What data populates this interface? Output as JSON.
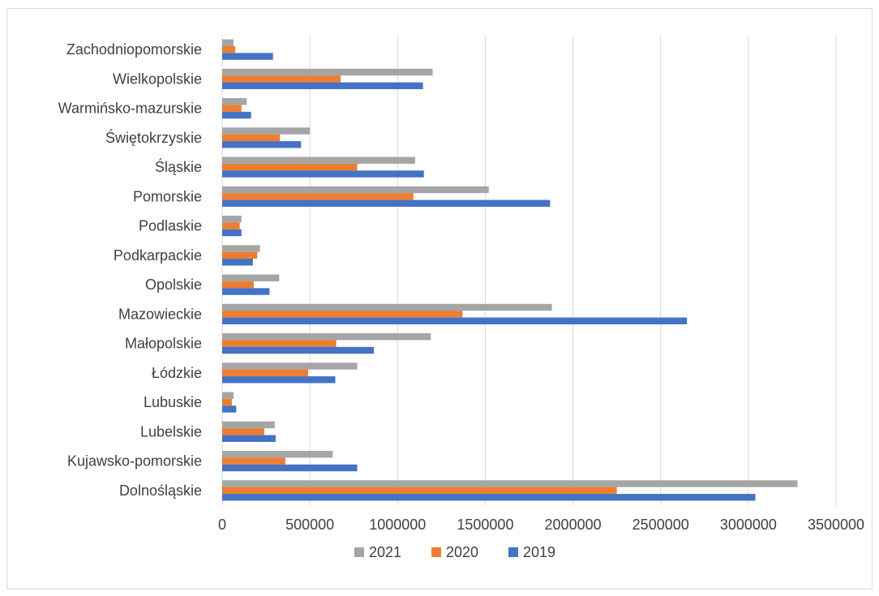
{
  "chart_data": {
    "type": "bar",
    "orientation": "horizontal",
    "title": "",
    "xlabel": "",
    "ylabel": "",
    "xlim": [
      0,
      3500000
    ],
    "xticks": [
      "0",
      "500000",
      "1000000",
      "1500000",
      "2000000",
      "2500000",
      "3000000",
      "3500000"
    ],
    "grid": true,
    "legend_position": "bottom",
    "categories": [
      "Dolnośląskie",
      "Kujawsko-pomorskie",
      "Lubelskie",
      "Lubuskie",
      "Łódzkie",
      "Małopolskie",
      "Mazowieckie",
      "Opolskie",
      "Podkarpackie",
      "Podlaskie",
      "Pomorskie",
      "Śląskie",
      "Świętokrzyskie",
      "Warmińsko-mazurskie",
      "Wielkopolskie",
      "Zachodniopomorskie"
    ],
    "series": [
      {
        "name": "2021",
        "color": "#a5a5a5",
        "values": [
          3280000,
          630000,
          300000,
          65000,
          770000,
          1190000,
          1880000,
          325000,
          215000,
          110000,
          1520000,
          1100000,
          500000,
          140000,
          1200000,
          65000
        ]
      },
      {
        "name": "2020",
        "color": "#ed7d31",
        "values": [
          2250000,
          360000,
          240000,
          55000,
          490000,
          650000,
          1370000,
          180000,
          200000,
          100000,
          1090000,
          770000,
          330000,
          110000,
          675000,
          75000
        ]
      },
      {
        "name": "2019",
        "color": "#4472c4",
        "values": [
          3040000,
          770000,
          305000,
          80000,
          645000,
          865000,
          2650000,
          270000,
          175000,
          110000,
          1870000,
          1150000,
          450000,
          165000,
          1145000,
          290000
        ]
      }
    ]
  }
}
